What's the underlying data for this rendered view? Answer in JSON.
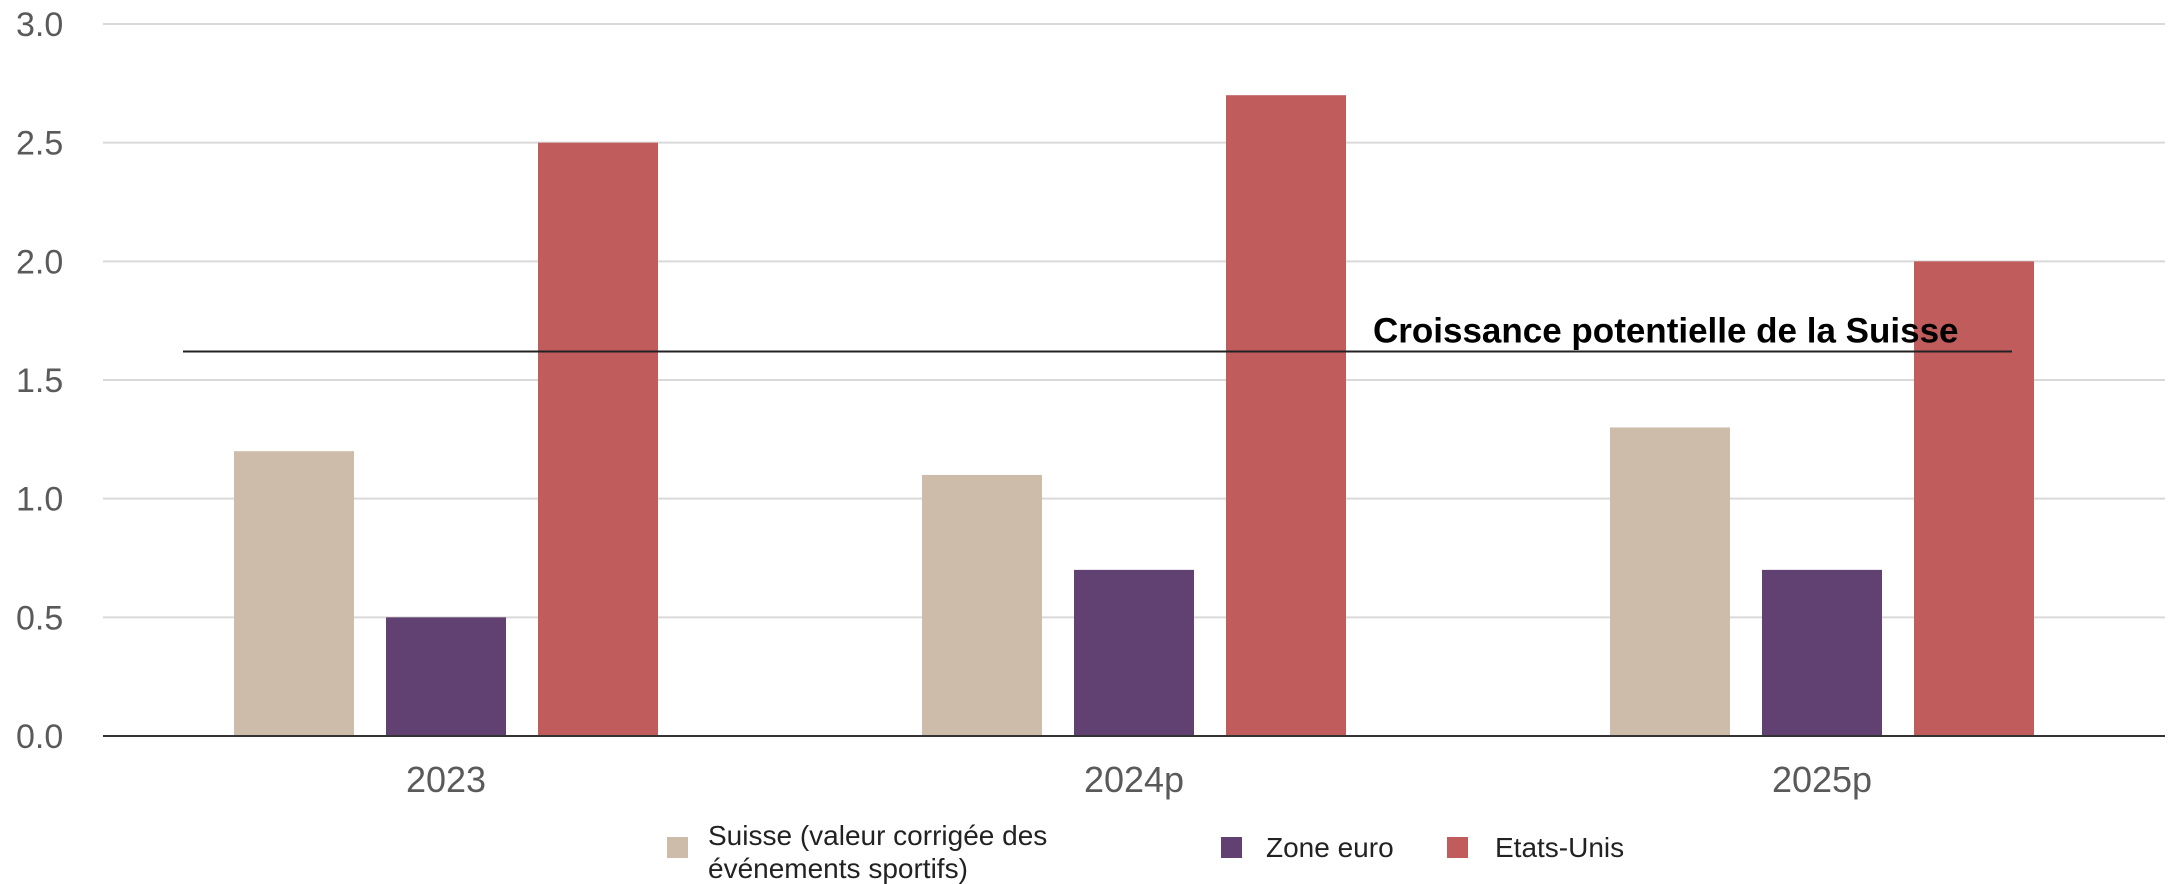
{
  "chart_data": {
    "type": "bar",
    "categories": [
      "2023",
      "2024p",
      "2025p"
    ],
    "series": [
      {
        "name": "Suisse (valeur corrigée des événements sportifs)",
        "name_lines": [
          "Suisse (valeur corrigée des",
          "événements sportifs)"
        ],
        "color": "#cdbca9",
        "values": [
          1.2,
          1.1,
          1.3
        ]
      },
      {
        "name": "Zone euro",
        "color": "#614171",
        "values": [
          0.5,
          0.7,
          0.7
        ]
      },
      {
        "name": "Etats-Unis",
        "color": "#c05c5c",
        "values": [
          2.5,
          2.7,
          2.0
        ]
      }
    ],
    "ylim": [
      0,
      3.0
    ],
    "yticks": [
      "0.0",
      "0.5",
      "1.0",
      "1.5",
      "2.0",
      "2.5",
      "3.0"
    ],
    "reference_line": {
      "label": "Croissance potentielle de la Suisse",
      "value": 1.62
    },
    "grid": true,
    "legend_position": "bottom",
    "title": "",
    "xlabel": "",
    "ylabel": ""
  }
}
